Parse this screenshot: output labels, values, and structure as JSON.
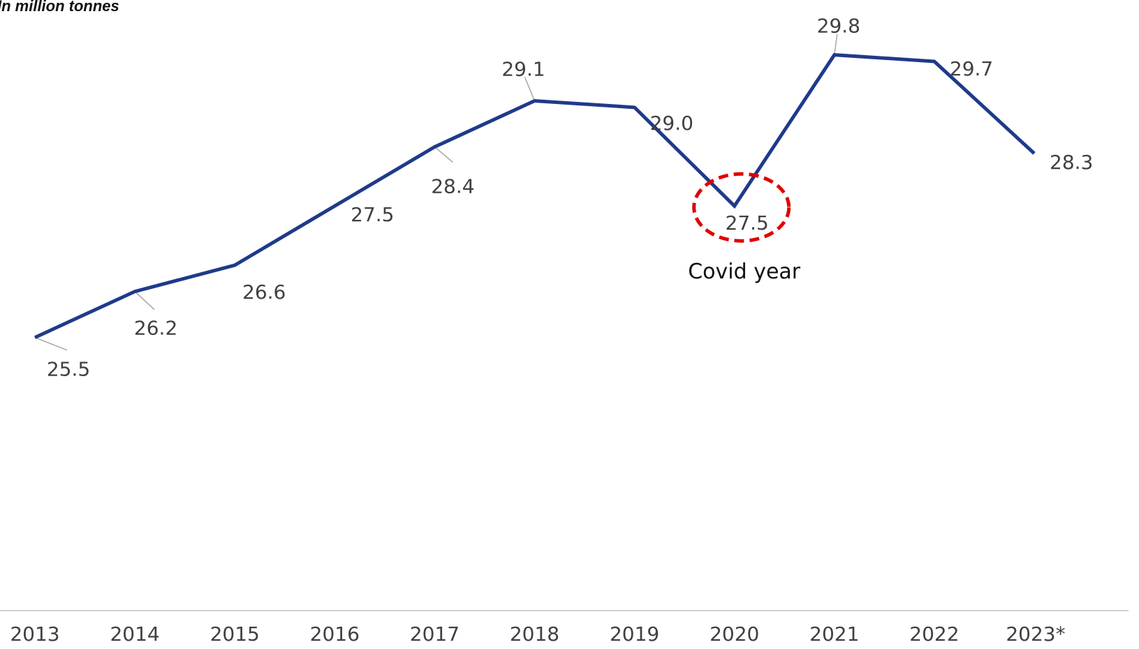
{
  "chart_data": {
    "type": "line",
    "unit_label": "In million tonnes",
    "categories": [
      "2013",
      "2014",
      "2015",
      "2016",
      "2017",
      "2018",
      "2019",
      "2020",
      "2021",
      "2022",
      "2023*"
    ],
    "series": [
      {
        "values": [
          25.5,
          26.2,
          26.6,
          27.5,
          28.4,
          29.1,
          29.0,
          27.5,
          29.8,
          29.7,
          28.3
        ],
        "labels": [
          "25.5",
          "26.2",
          "26.6",
          "27.5",
          "28.4",
          "29.1",
          "29.0",
          "27.5",
          "29.8",
          "29.7",
          "28.3"
        ],
        "color": "#1f3a8a"
      }
    ],
    "annotation": {
      "text": "Covid year",
      "category": "2020",
      "highlight_color": "#e00000"
    },
    "ylim": [
      24.2,
      30.5
    ],
    "grid": false,
    "axis_line_color": "#d0d0d0"
  }
}
